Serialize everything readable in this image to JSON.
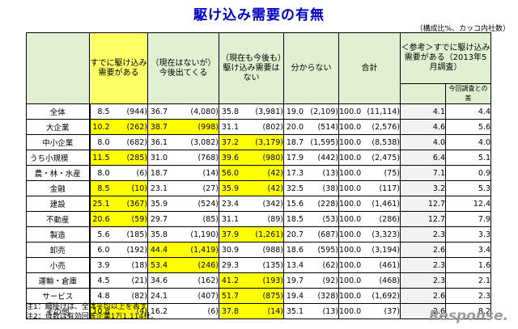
{
  "title": "駆け込み需要の有無",
  "unit_note": "（構成比%、カッコ内社数）",
  "headers": {
    "col1": "すでに駆け込み需要がある",
    "col2": "（現在はないが）今後出てくる",
    "col3": "（現在も今後も）駆け込み需要はない",
    "col4": "分からない",
    "col5": "合計",
    "col6": "＜参考＞すでに駆け込み需要がある（2013年5月調査）",
    "col7": "今回調査との差"
  },
  "rows": [
    {
      "label": "全体",
      "a": [
        "8.5",
        "(944)"
      ],
      "b": [
        "36.7",
        "(4,080)"
      ],
      "c": [
        "35.8",
        "(3,981)"
      ],
      "d": [
        "19.0",
        "(2,109)"
      ],
      "e": [
        "100.0",
        "(11,114)"
      ],
      "f": "4.1",
      "g": "4.4",
      "hl": []
    },
    {
      "label": "大企業",
      "a": [
        "10.2",
        "(262)"
      ],
      "b": [
        "38.7",
        "(998)"
      ],
      "c": [
        "31.1",
        "(802)"
      ],
      "d": [
        "20.0",
        "(514)"
      ],
      "e": [
        "100.0",
        "(2,576)"
      ],
      "f": "4.6",
      "g": "5.6",
      "hl": [
        "a",
        "b"
      ]
    },
    {
      "label": "中小企業",
      "a": [
        "8.0",
        "(682)"
      ],
      "b": [
        "36.1",
        "(3,082)"
      ],
      "c": [
        "37.2",
        "(3,179)"
      ],
      "d": [
        "18.7",
        "(1,595)"
      ],
      "e": [
        "100.0",
        "(8,538)"
      ],
      "f": "4.0",
      "g": "4.0",
      "hl": [
        "c"
      ]
    },
    {
      "label": "うち小規模",
      "a": [
        "11.5",
        "(285)"
      ],
      "b": [
        "31.0",
        "(768)"
      ],
      "c": [
        "39.6",
        "(980)"
      ],
      "d": [
        "17.9",
        "(442)"
      ],
      "e": [
        "100.0",
        "(2,475)"
      ],
      "f": "6.4",
      "g": "5.1",
      "hl": [
        "a",
        "c"
      ],
      "sub": true
    },
    {
      "label": "農・林・水産",
      "a": [
        "8.0",
        "(6)"
      ],
      "b": [
        "18.7",
        "(14)"
      ],
      "c": [
        "56.0",
        "(42)"
      ],
      "d": [
        "17.3",
        "(13)"
      ],
      "e": [
        "100.0",
        "(75)"
      ],
      "f": "7.1",
      "g": "0.9",
      "hl": [
        "c"
      ]
    },
    {
      "label": "金融",
      "a": [
        "8.5",
        "(10)"
      ],
      "b": [
        "23.1",
        "(27)"
      ],
      "c": [
        "35.9",
        "(42)"
      ],
      "d": [
        "32.5",
        "(38)"
      ],
      "e": [
        "100.0",
        "(117)"
      ],
      "f": "3.2",
      "g": "5.3",
      "hl": [
        "a",
        "c"
      ]
    },
    {
      "label": "建設",
      "a": [
        "25.1",
        "(367)"
      ],
      "b": [
        "35.9",
        "(524)"
      ],
      "c": [
        "23.4",
        "(342)"
      ],
      "d": [
        "15.6",
        "(228)"
      ],
      "e": [
        "100.0",
        "(1,461)"
      ],
      "f": "12.7",
      "g": "12.4",
      "hl": [
        "a"
      ]
    },
    {
      "label": "不動産",
      "a": [
        "20.6",
        "(59)"
      ],
      "b": [
        "29.7",
        "(85)"
      ],
      "c": [
        "31.1",
        "(89)"
      ],
      "d": [
        "18.5",
        "(53)"
      ],
      "e": [
        "100.0",
        "(286)"
      ],
      "f": "12.7",
      "g": "7.9",
      "hl": [
        "a"
      ]
    },
    {
      "label": "製造",
      "a": [
        "5.6",
        "(185)"
      ],
      "b": [
        "35.8",
        "(1,190)"
      ],
      "c": [
        "37.9",
        "(1,261)"
      ],
      "d": [
        "20.7",
        "(687)"
      ],
      "e": [
        "100.0",
        "(3,323)"
      ],
      "f": "2.3",
      "g": "3.3",
      "hl": [
        "c"
      ]
    },
    {
      "label": "卸売",
      "a": [
        "6.0",
        "(192)"
      ],
      "b": [
        "44.4",
        "(1,419)"
      ],
      "c": [
        "30.9",
        "(988)"
      ],
      "d": [
        "18.6",
        "(595)"
      ],
      "e": [
        "100.0",
        "(3,194)"
      ],
      "f": "2.6",
      "g": "3.4",
      "hl": [
        "b"
      ]
    },
    {
      "label": "小売",
      "a": [
        "3.9",
        "(18)"
      ],
      "b": [
        "53.4",
        "(246)"
      ],
      "c": [
        "29.3",
        "(135)"
      ],
      "d": [
        "13.4",
        "(62)"
      ],
      "e": [
        "100.0",
        "(461)"
      ],
      "f": "2.3",
      "g": "1.6",
      "hl": [
        "b"
      ]
    },
    {
      "label": "運輸・倉庫",
      "a": [
        "4.5",
        "(21)"
      ],
      "b": [
        "34.6",
        "(162)"
      ],
      "c": [
        "41.2",
        "(193)"
      ],
      "d": [
        "19.7",
        "(92)"
      ],
      "e": [
        "100.0",
        "(468)"
      ],
      "f": "2.3",
      "g": "2.1",
      "hl": [
        "c"
      ]
    },
    {
      "label": "サービス",
      "a": [
        "4.8",
        "(82)"
      ],
      "b": [
        "24.1",
        "(407)"
      ],
      "c": [
        "51.7",
        "(875)"
      ],
      "d": [
        "19.4",
        "(328)"
      ],
      "e": [
        "100.0",
        "(1,692)"
      ],
      "f": "2.6",
      "g": "2.3",
      "hl": [
        "c"
      ]
    },
    {
      "label": "その他",
      "a": [
        "10.8",
        "(4)"
      ],
      "b": [
        "16.2",
        "(6)"
      ],
      "c": [
        "37.8",
        "(14)"
      ],
      "d": [
        "35.1",
        "(13)"
      ],
      "e": [
        "100.0",
        "(37)"
      ],
      "f": "2.6",
      "g": "8.2",
      "hl": [
        "a",
        "c"
      ]
    }
  ],
  "notes": [
    "注1：網掛けは、全体平均以上を表す",
    "注2：母数は有効回答企業1万1,114社。"
  ],
  "watermark": "Response.",
  "colors": {
    "highlight": "#ffff00",
    "header_bg": "#e2f0d2",
    "title": "#0000cc"
  }
}
